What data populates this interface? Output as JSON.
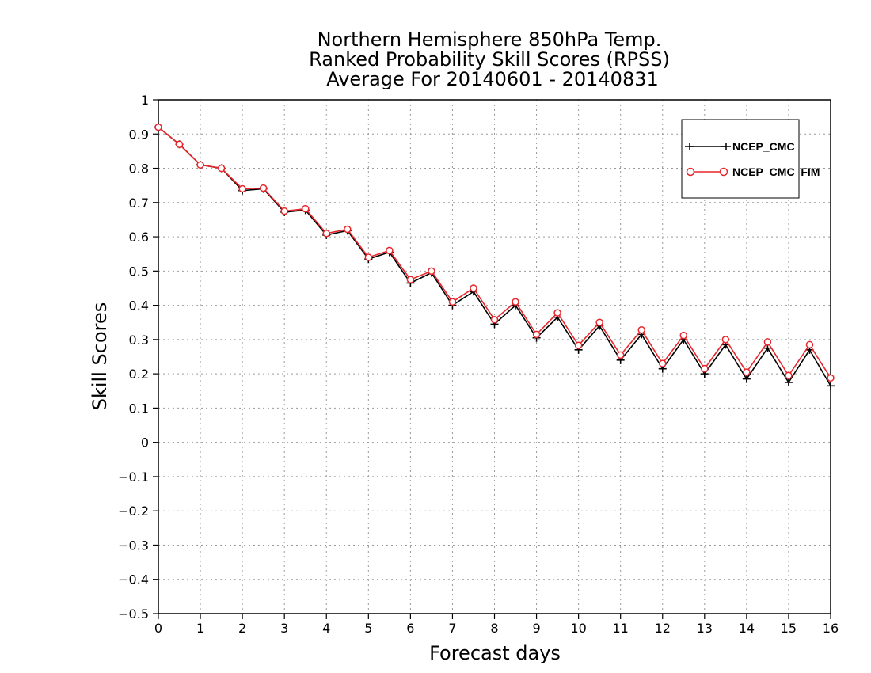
{
  "chart_data": {
    "type": "line",
    "title_lines": [
      "Northern Hemisphere 850hPa Temp.",
      "Ranked Probability Skill Scores (RPSS)",
      "Average For 20140601 - 20140831"
    ],
    "xlabel": "Forecast days",
    "ylabel": "Skill Scores",
    "xlim": [
      0,
      16
    ],
    "ylim": [
      -0.5,
      1
    ],
    "x_ticks": [
      "0",
      "1",
      "2",
      "3",
      "4",
      "5",
      "6",
      "7",
      "8",
      "9",
      "10",
      "11",
      "12",
      "13",
      "14",
      "15",
      "16"
    ],
    "y_ticks": [
      "−0.5",
      "−0.4",
      "−0.3",
      "−0.2",
      "−0.1",
      "0",
      "0.1",
      "0.2",
      "0.3",
      "0.4",
      "0.5",
      "0.6",
      "0.7",
      "0.8",
      "0.9",
      "1"
    ],
    "grid": true,
    "legend_position": "top-right",
    "x": [
      0,
      0.5,
      1,
      1.5,
      2,
      2.5,
      3,
      3.5,
      4,
      4.5,
      5,
      5.5,
      6,
      6.5,
      7,
      7.5,
      8,
      8.5,
      9,
      9.5,
      10,
      10.5,
      11,
      11.5,
      12,
      12.5,
      13,
      13.5,
      14,
      14.5,
      15,
      15.5,
      16
    ],
    "series": [
      {
        "name": "NCEP_CMC",
        "color": "#000000",
        "marker": "plus",
        "values": [
          0.92,
          0.87,
          0.81,
          0.8,
          0.735,
          0.74,
          0.672,
          0.678,
          0.605,
          0.618,
          0.535,
          0.555,
          0.465,
          0.495,
          0.4,
          0.44,
          0.345,
          0.4,
          0.305,
          0.365,
          0.27,
          0.34,
          0.24,
          0.315,
          0.215,
          0.3,
          0.2,
          0.285,
          0.185,
          0.275,
          0.175,
          0.27,
          0.165
        ]
      },
      {
        "name": "NCEP_CMC_FIM",
        "color": "#e8262b",
        "marker": "circle",
        "values": [
          0.92,
          0.87,
          0.81,
          0.8,
          0.74,
          0.742,
          0.675,
          0.682,
          0.61,
          0.622,
          0.54,
          0.56,
          0.475,
          0.5,
          0.41,
          0.45,
          0.358,
          0.41,
          0.315,
          0.378,
          0.283,
          0.35,
          0.255,
          0.328,
          0.23,
          0.312,
          0.215,
          0.3,
          0.205,
          0.293,
          0.195,
          0.285,
          0.188
        ]
      }
    ]
  }
}
